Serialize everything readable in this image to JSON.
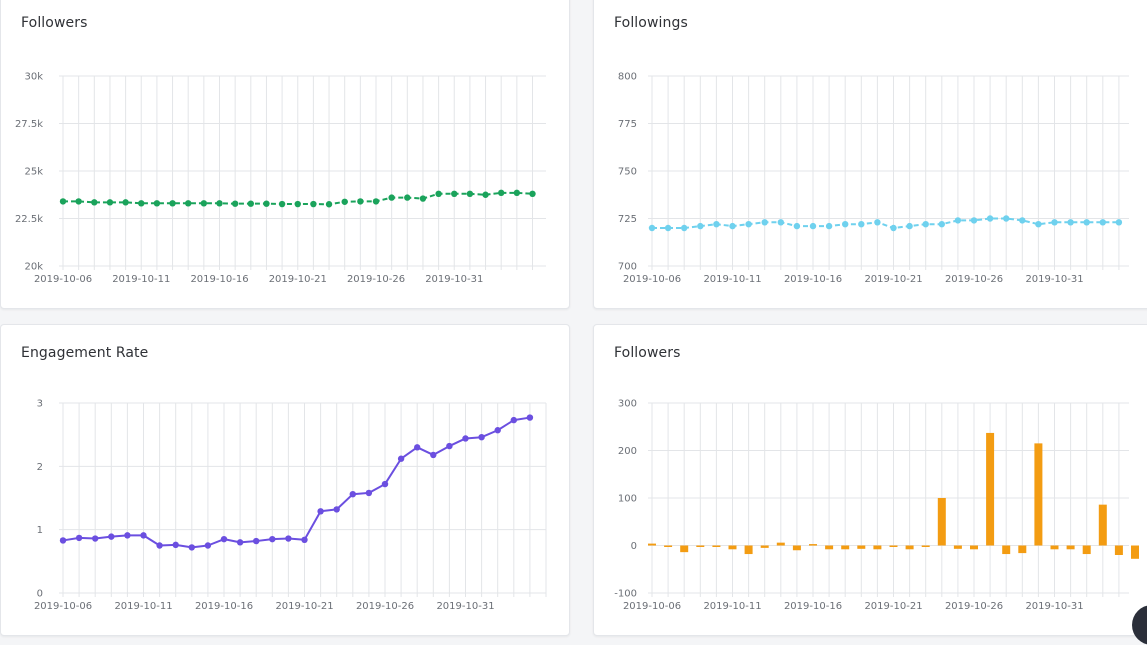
{
  "cards": [
    {
      "title": "Followers"
    },
    {
      "title": "Followings"
    },
    {
      "title": "Engagement Rate"
    },
    {
      "title": "Followers"
    }
  ],
  "chart_data": [
    {
      "type": "line",
      "title": "Followers",
      "color": "#1aa35b",
      "dashed": true,
      "x_start": "2019-10-06",
      "x_tick_labels": [
        "2019-10-06",
        "2019-10-11",
        "2019-10-16",
        "2019-10-21",
        "2019-10-26",
        "2019-10-31"
      ],
      "y_ticks": [
        20000,
        22500,
        25000,
        27500,
        30000
      ],
      "y_tick_labels": [
        "20k",
        "22.5k",
        "25k",
        "27.5k",
        "30k"
      ],
      "ylim": [
        20000,
        30000
      ],
      "grid": true,
      "values": [
        23400,
        23400,
        23350,
        23350,
        23350,
        23300,
        23300,
        23300,
        23300,
        23300,
        23300,
        23280,
        23280,
        23280,
        23260,
        23260,
        23260,
        23250,
        23380,
        23400,
        23400,
        23600,
        23600,
        23550,
        23800,
        23800,
        23800,
        23750,
        23850,
        23850,
        23800
      ]
    },
    {
      "type": "line",
      "title": "Followings",
      "color": "#6fd1ee",
      "dashed": true,
      "x_start": "2019-10-06",
      "x_tick_labels": [
        "2019-10-06",
        "2019-10-11",
        "2019-10-16",
        "2019-10-21",
        "2019-10-26",
        "2019-10-31"
      ],
      "y_ticks": [
        700,
        725,
        750,
        775,
        800
      ],
      "y_tick_labels": [
        "700",
        "725",
        "750",
        "775",
        "800"
      ],
      "ylim": [
        700,
        800
      ],
      "grid": true,
      "values": [
        720,
        720,
        720,
        721,
        722,
        721,
        722,
        723,
        723,
        721,
        721,
        721,
        722,
        722,
        723,
        720,
        721,
        722,
        722,
        724,
        724,
        725,
        725,
        724,
        722,
        723,
        723,
        723,
        723,
        723
      ]
    },
    {
      "type": "line",
      "title": "Engagement Rate",
      "color": "#6b4fe0",
      "dashed": false,
      "x_start": "2019-10-06",
      "x_tick_labels": [
        "2019-10-06",
        "2019-10-11",
        "2019-10-16",
        "2019-10-21",
        "2019-10-26",
        "2019-10-31"
      ],
      "y_ticks": [
        0,
        1,
        2,
        3
      ],
      "y_tick_labels": [
        "0",
        "1",
        "2",
        "3"
      ],
      "ylim": [
        0,
        3
      ],
      "grid": true,
      "values": [
        0.83,
        0.87,
        0.86,
        0.89,
        0.91,
        0.91,
        0.75,
        0.76,
        0.72,
        0.75,
        0.85,
        0.8,
        0.82,
        0.85,
        0.86,
        0.84,
        1.29,
        1.32,
        1.56,
        1.58,
        1.72,
        2.12,
        2.3,
        2.18,
        2.32,
        2.44,
        2.46,
        2.57,
        2.73,
        2.77
      ]
    },
    {
      "type": "bar",
      "title": "Followers",
      "color": "#f39c12",
      "x_start": "2019-10-06",
      "x_tick_labels": [
        "2019-10-06",
        "2019-10-11",
        "2019-10-16",
        "2019-10-21",
        "2019-10-26",
        "2019-10-31"
      ],
      "y_ticks": [
        -100,
        0,
        100,
        200,
        300
      ],
      "y_tick_labels": [
        "-100",
        "0",
        "100",
        "200",
        "300"
      ],
      "ylim": [
        -100,
        300
      ],
      "grid": true,
      "values": [
        4,
        -2,
        -14,
        0,
        0,
        -8,
        -18,
        -5,
        6,
        -10,
        3,
        -8,
        -8,
        -7,
        -8,
        -2,
        -8,
        -3,
        100,
        -7,
        -8,
        237,
        -18,
        -16,
        215,
        -8,
        -8,
        -18,
        86,
        -20,
        -28
      ]
    }
  ]
}
